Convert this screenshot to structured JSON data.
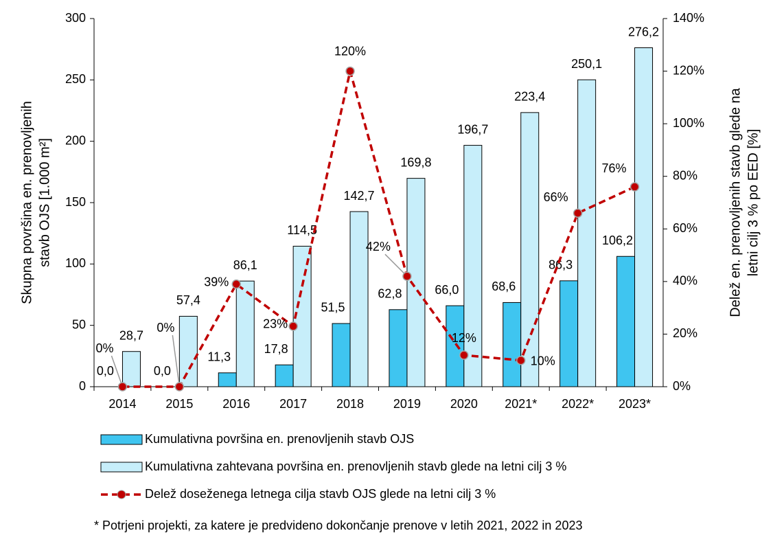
{
  "chart_data": {
    "type": "bar_line",
    "categories": [
      "2014",
      "2015",
      "2016",
      "2017",
      "2018",
      "2019",
      "2020",
      "2021*",
      "2022*",
      "2023*"
    ],
    "series": [
      {
        "name": "Kumulativna površina en. prenovljenih stavb OJS",
        "color": "#3fc5f0",
        "values": [
          0.0,
          0.0,
          11.3,
          17.8,
          51.5,
          62.8,
          66.0,
          68.6,
          86.3,
          106.2
        ],
        "value_labels": [
          "0,0",
          "0,0",
          "11,3",
          "17,8",
          "51,5",
          "62,8",
          "66,0",
          "68,6",
          "86,3",
          "106,2"
        ]
      },
      {
        "name": "Kumulativna zahtevana površina en. prenovljenih stavb glede na letni cilj 3 %",
        "color": "#c7eefa",
        "values": [
          28.7,
          57.4,
          86.1,
          114.5,
          142.7,
          169.8,
          196.7,
          223.4,
          250.1,
          276.2
        ],
        "value_labels": [
          "28,7",
          "57,4",
          "86,1",
          "114,5",
          "142,7",
          "169,8",
          "196,7",
          "223,4",
          "250,1",
          "276,2"
        ]
      },
      {
        "name": "Delež doseženega letnega cilja stavb OJS glede na letni cilj 3 %",
        "color": "#c00000",
        "axis": "y2",
        "values": [
          0,
          0,
          39,
          23,
          120,
          42,
          12,
          10,
          66,
          76
        ],
        "value_labels": [
          "0%",
          "0%",
          "39%",
          "23%",
          "120%",
          "42%",
          "12%",
          "10%",
          "66%",
          "76%"
        ]
      }
    ],
    "ylabel": [
      "Skupna površina en. prenovljenih",
      "stavb OJS [1.000 m²]"
    ],
    "y2label": [
      "Delež en. prenovljenih stavb glede na",
      "letni cilj 3 % po EED [%]"
    ],
    "ylim": [
      0,
      300
    ],
    "yticks": [
      0,
      50,
      100,
      150,
      200,
      250,
      300
    ],
    "y2lim": [
      0,
      140
    ],
    "y2ticks": [
      {
        "value": 0,
        "label": "0%"
      },
      {
        "value": 20,
        "label": "20%"
      },
      {
        "value": 40,
        "label": "40%"
      },
      {
        "value": 60,
        "label": "60%"
      },
      {
        "value": 80,
        "label": "80%"
      },
      {
        "value": 100,
        "label": "100%"
      },
      {
        "value": 120,
        "label": "120%"
      },
      {
        "value": 140,
        "label": "140%"
      }
    ],
    "footnote": "* Potrjeni projekti, za katere je predvideno dokončanje prenove v letih 2021, 2022 in 2023"
  }
}
